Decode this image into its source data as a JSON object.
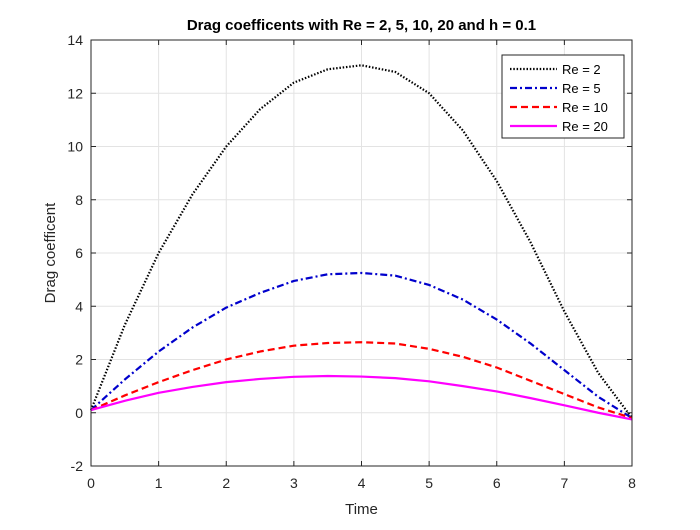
{
  "chart_data": {
    "type": "line",
    "title": "Drag coefficents with Re = 2, 5, 10, 20 and h = 0.1",
    "xlabel": "Time",
    "ylabel": "Drag coefficent",
    "xlim": [
      0,
      8
    ],
    "ylim": [
      -2,
      14
    ],
    "xticks": [
      0,
      1,
      2,
      3,
      4,
      5,
      6,
      7,
      8
    ],
    "yticks": [
      -2,
      0,
      2,
      4,
      6,
      8,
      10,
      12,
      14
    ],
    "grid": true,
    "legend_position": "top-right",
    "series": [
      {
        "name": "Re = 2",
        "color": "#000000",
        "line_style": "dotted",
        "x": [
          0,
          0.5,
          1,
          1.5,
          2,
          2.5,
          3,
          3.5,
          4,
          4.5,
          5,
          5.5,
          6,
          6.5,
          7,
          7.5,
          8
        ],
        "y": [
          0.1,
          3.3,
          6.0,
          8.2,
          10.0,
          11.4,
          12.4,
          12.9,
          13.05,
          12.8,
          12.0,
          10.6,
          8.7,
          6.4,
          3.8,
          1.5,
          -0.2
        ]
      },
      {
        "name": "Re = 5",
        "color": "#0000cc",
        "line_style": "dashdot",
        "x": [
          0,
          0.5,
          1,
          1.5,
          2,
          2.5,
          3,
          3.5,
          4,
          4.5,
          5,
          5.5,
          6,
          6.5,
          7,
          7.5,
          8
        ],
        "y": [
          0.1,
          1.25,
          2.3,
          3.2,
          3.95,
          4.5,
          4.95,
          5.2,
          5.25,
          5.15,
          4.8,
          4.25,
          3.5,
          2.6,
          1.6,
          0.6,
          -0.2
        ]
      },
      {
        "name": "Re = 10",
        "color": "#ff0000",
        "line_style": "dashed",
        "x": [
          0,
          0.5,
          1,
          1.5,
          2,
          2.5,
          3,
          3.5,
          4,
          4.5,
          5,
          5.5,
          6,
          6.5,
          7,
          7.5,
          8
        ],
        "y": [
          0.1,
          0.65,
          1.15,
          1.6,
          2.0,
          2.3,
          2.52,
          2.62,
          2.65,
          2.6,
          2.4,
          2.1,
          1.7,
          1.2,
          0.7,
          0.2,
          -0.2
        ]
      },
      {
        "name": "Re = 20",
        "color": "#ff00ff",
        "line_style": "solid",
        "x": [
          0,
          0.5,
          1,
          1.5,
          2,
          2.5,
          3,
          3.5,
          4,
          4.5,
          5,
          5.5,
          6,
          6.5,
          7,
          7.5,
          8
        ],
        "y": [
          0.1,
          0.45,
          0.75,
          0.97,
          1.15,
          1.27,
          1.35,
          1.38,
          1.36,
          1.3,
          1.18,
          1.0,
          0.8,
          0.55,
          0.28,
          0.0,
          -0.25
        ]
      }
    ]
  }
}
